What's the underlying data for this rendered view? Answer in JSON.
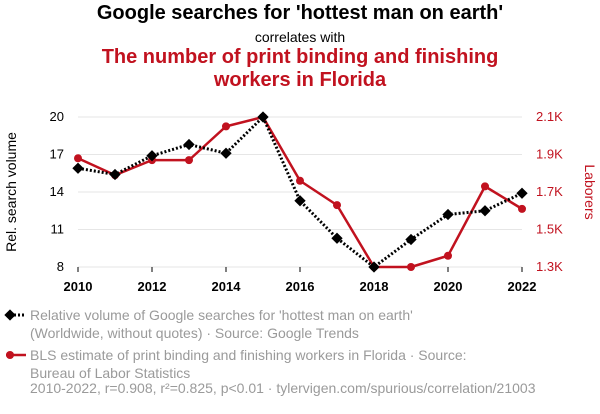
{
  "header": {
    "title": "Google searches for 'hottest man on earth'",
    "connector": "correlates with",
    "subtitle": "The number of print binding and finishing workers in Florida"
  },
  "colors": {
    "series1": "#000000",
    "series2": "#c1121f",
    "muted": "#9a9a9a"
  },
  "chart_data": {
    "type": "line",
    "x": [
      2010,
      2011,
      2012,
      2013,
      2014,
      2015,
      2016,
      2017,
      2018,
      2019,
      2020,
      2021,
      2022
    ],
    "xticks": [
      "2010",
      "2012",
      "2014",
      "2016",
      "2018",
      "2020",
      "2022"
    ],
    "xlim": [
      2010,
      2022
    ],
    "left_axis": {
      "label": "Rel. search volume",
      "ticks": [
        "20",
        "17",
        "14",
        "11",
        "8"
      ],
      "ylim": [
        8,
        20
      ]
    },
    "right_axis": {
      "label": "Laborers",
      "ticks": [
        "2.1K",
        "1.9K",
        "1.7K",
        "1.5K",
        "1.3K"
      ],
      "ylim": [
        1300,
        2100
      ]
    },
    "series": [
      {
        "name": "Relative volume of Google searches for 'hottest man on earth' (Worldwide, without quotes) · Source: Google Trends",
        "axis": "left",
        "style": "dotted",
        "marker": "diamond",
        "values": [
          15.9,
          15.4,
          16.9,
          17.8,
          17.1,
          20.0,
          13.3,
          10.3,
          8.0,
          10.2,
          12.2,
          12.5,
          13.9
        ]
      },
      {
        "name": "BLS estimate of print binding and finishing workers in Florida · Source: Bureau of Labor Statistics",
        "axis": "right",
        "style": "solid",
        "marker": "circle",
        "values": [
          1880,
          1790,
          1870,
          1870,
          2050,
          2100,
          1760,
          1630,
          1300,
          1300,
          1360,
          1730,
          1610
        ]
      }
    ],
    "grid": "horizontal"
  },
  "legend": {
    "line1a": "Relative volume of Google searches for 'hottest man on earth'",
    "line1b": "(Worldwide, without quotes) · Source: Google Trends",
    "line2a": "BLS estimate of print binding and finishing workers in Florida · Source:",
    "line2b": "Bureau of Labor Statistics"
  },
  "footer": "2010-2022, r=0.908, r²=0.825, p<0.01 · tylervigen.com/spurious/correlation/21003"
}
